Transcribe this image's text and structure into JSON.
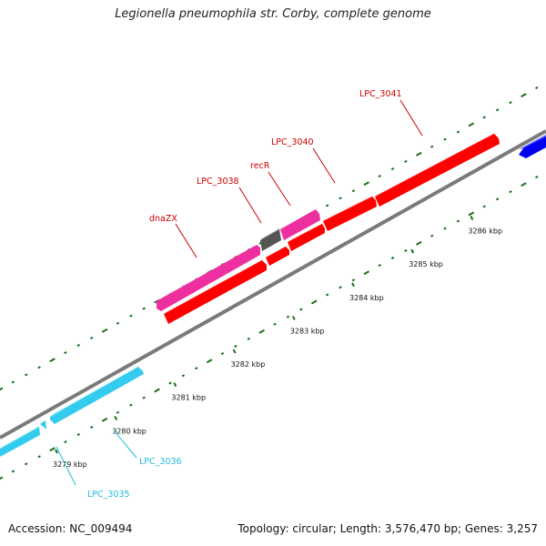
{
  "title": "Legionella pneumophila str. Corby, complete genome",
  "footer": {
    "accession": "Accession: NC_009494",
    "summary": "Topology: circular; Length: 3,576,470 bp; Genes: 3,257"
  },
  "scale": {
    "ticks": [
      "3279 kbp",
      "3280 kbp",
      "3281 kbp",
      "3282 kbp",
      "3283 kbp",
      "3284 kbp",
      "3285 kbp",
      "3286 kbp"
    ]
  },
  "genes": [
    {
      "label": "LPC_3035",
      "strand": "reverse",
      "color": "#33ccee"
    },
    {
      "label": "LPC_3036",
      "strand": "reverse",
      "color": "#33ccee"
    },
    {
      "label": "dnaZX",
      "strand": "forward",
      "color": "#ee2fa0"
    },
    {
      "label": "LPC_3038",
      "strand": "forward",
      "color": "#555555"
    },
    {
      "label": "recR",
      "strand": "forward",
      "color": "#ee2fa0"
    },
    {
      "label": "LPC_3040",
      "strand": "forward",
      "color": "#ff0000"
    },
    {
      "label": "LPC_3041",
      "strand": "forward",
      "color": "#ff0000"
    }
  ],
  "colors": {
    "backbone": "#7a7a7a",
    "forward_red": "#ff0000",
    "pink": "#ee2fa0",
    "cyan": "#33ccee",
    "gray_gene": "#555555",
    "blue_gene": "#0000ee",
    "gc_ticks": "#1a6e1a",
    "label_red": "#cc0000",
    "label_cyan": "#22bbdd"
  }
}
